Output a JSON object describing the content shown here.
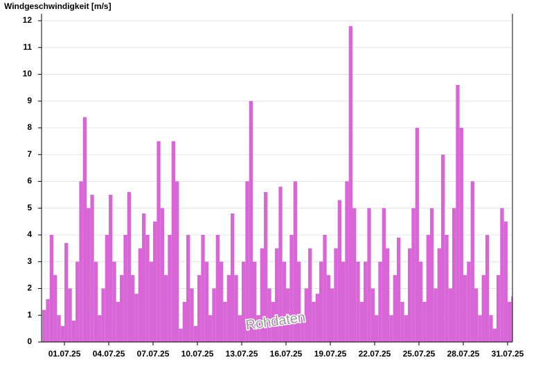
{
  "chart_data": {
    "type": "bar",
    "title": "Windgeschwindigkeit [m/s]",
    "annotation": "Rohdaten",
    "color": "#d966d6",
    "grid": true,
    "x": [
      -0.5,
      -0.25,
      0,
      0.25,
      0.5,
      0.75,
      1,
      1.25,
      1.5,
      1.75,
      2,
      2.25,
      2.5,
      2.75,
      3,
      3.25,
      3.5,
      3.75,
      4,
      4.25,
      4.5,
      4.75,
      5,
      5.25,
      5.5,
      5.75,
      6,
      6.25,
      6.5,
      6.75,
      7,
      7.25,
      7.5,
      7.75,
      8,
      8.25,
      8.5,
      8.75,
      9,
      9.25,
      9.5,
      9.75,
      10,
      10.25,
      10.5,
      10.75,
      11,
      11.25,
      11.5,
      11.75,
      12,
      12.25,
      12.5,
      12.75,
      13,
      13.25,
      13.5,
      13.75,
      14,
      14.25,
      14.5,
      14.75,
      15,
      15.25,
      15.5,
      15.75,
      16,
      16.25,
      16.5,
      16.75,
      17,
      17.25,
      17.5,
      17.75,
      18,
      18.25,
      18.5,
      18.75,
      19,
      19.25,
      19.5,
      19.75,
      20,
      20.25,
      20.5,
      20.75,
      21,
      21.25,
      21.5,
      21.75,
      22,
      22.25,
      22.5,
      22.75,
      23,
      23.25,
      23.5,
      23.75,
      24,
      24.25,
      24.5,
      24.75,
      25,
      25.25,
      25.5,
      25.75,
      26,
      26.25,
      26.5,
      26.75,
      27,
      27.25,
      27.5,
      27.75,
      28,
      28.25,
      28.5,
      28.75,
      29,
      29.25,
      29.5,
      29.75,
      30,
      30.25,
      30.5,
      30.75,
      31,
      31.25
    ],
    "values": [
      1.2,
      1.6,
      4.0,
      2.5,
      1.0,
      0.6,
      3.7,
      2.0,
      0.8,
      3.0,
      6.0,
      8.4,
      5.0,
      5.5,
      3.0,
      1.0,
      2.0,
      4.0,
      5.5,
      3.0,
      1.5,
      2.5,
      4.0,
      5.6,
      2.5,
      1.8,
      3.5,
      4.8,
      4.0,
      3.0,
      4.5,
      7.5,
      5.0,
      2.5,
      4.0,
      7.5,
      6.0,
      0.5,
      1.5,
      4.0,
      2.0,
      0.6,
      2.5,
      4.0,
      3.0,
      1.0,
      2.0,
      4.0,
      3.0,
      1.5,
      2.5,
      4.8,
      2.5,
      1.0,
      3.0,
      6.0,
      9.0,
      3.0,
      1.0,
      3.5,
      5.6,
      2.0,
      1.5,
      3.5,
      5.8,
      3.0,
      2.0,
      4.0,
      6.0,
      3.0,
      1.0,
      2.0,
      3.5,
      1.5,
      1.8,
      3.0,
      4.0,
      2.5,
      2.0,
      3.5,
      5.3,
      3.0,
      6.0,
      11.8,
      5.0,
      3.0,
      1.5,
      3.0,
      5.0,
      2.0,
      1.0,
      3.0,
      5.0,
      3.5,
      1.0,
      2.5,
      3.9,
      1.5,
      1.0,
      3.5,
      5.0,
      8.0,
      3.0,
      1.5,
      4.0,
      5.0,
      2.0,
      3.5,
      7.0,
      4.0,
      2.0,
      5.0,
      9.6,
      8.0,
      2.5,
      3.0,
      6.0,
      2.0,
      1.0,
      2.5,
      4.0,
      1.0,
      0.5,
      2.5,
      5.0,
      4.5,
      1.5,
      1.7
    ],
    "xlim": [
      -0.55,
      31.33
    ],
    "xticks": [
      {
        "value": 1,
        "label": "01.07.25"
      },
      {
        "value": 4,
        "label": "04.07.25"
      },
      {
        "value": 7,
        "label": "07.07.25"
      },
      {
        "value": 10,
        "label": "10.07.25"
      },
      {
        "value": 13,
        "label": "13.07.25"
      },
      {
        "value": 16,
        "label": "16.07.25"
      },
      {
        "value": 19,
        "label": "19.07.25"
      },
      {
        "value": 22,
        "label": "22.07.25"
      },
      {
        "value": 25,
        "label": "25.07.25"
      },
      {
        "value": 28,
        "label": "28.07.25"
      },
      {
        "value": 31,
        "label": "31.07.25"
      }
    ],
    "ylim": [
      0,
      12
    ],
    "yticks": [
      0,
      1,
      2,
      3,
      4,
      5,
      6,
      7,
      8,
      9,
      10,
      11,
      12
    ]
  }
}
